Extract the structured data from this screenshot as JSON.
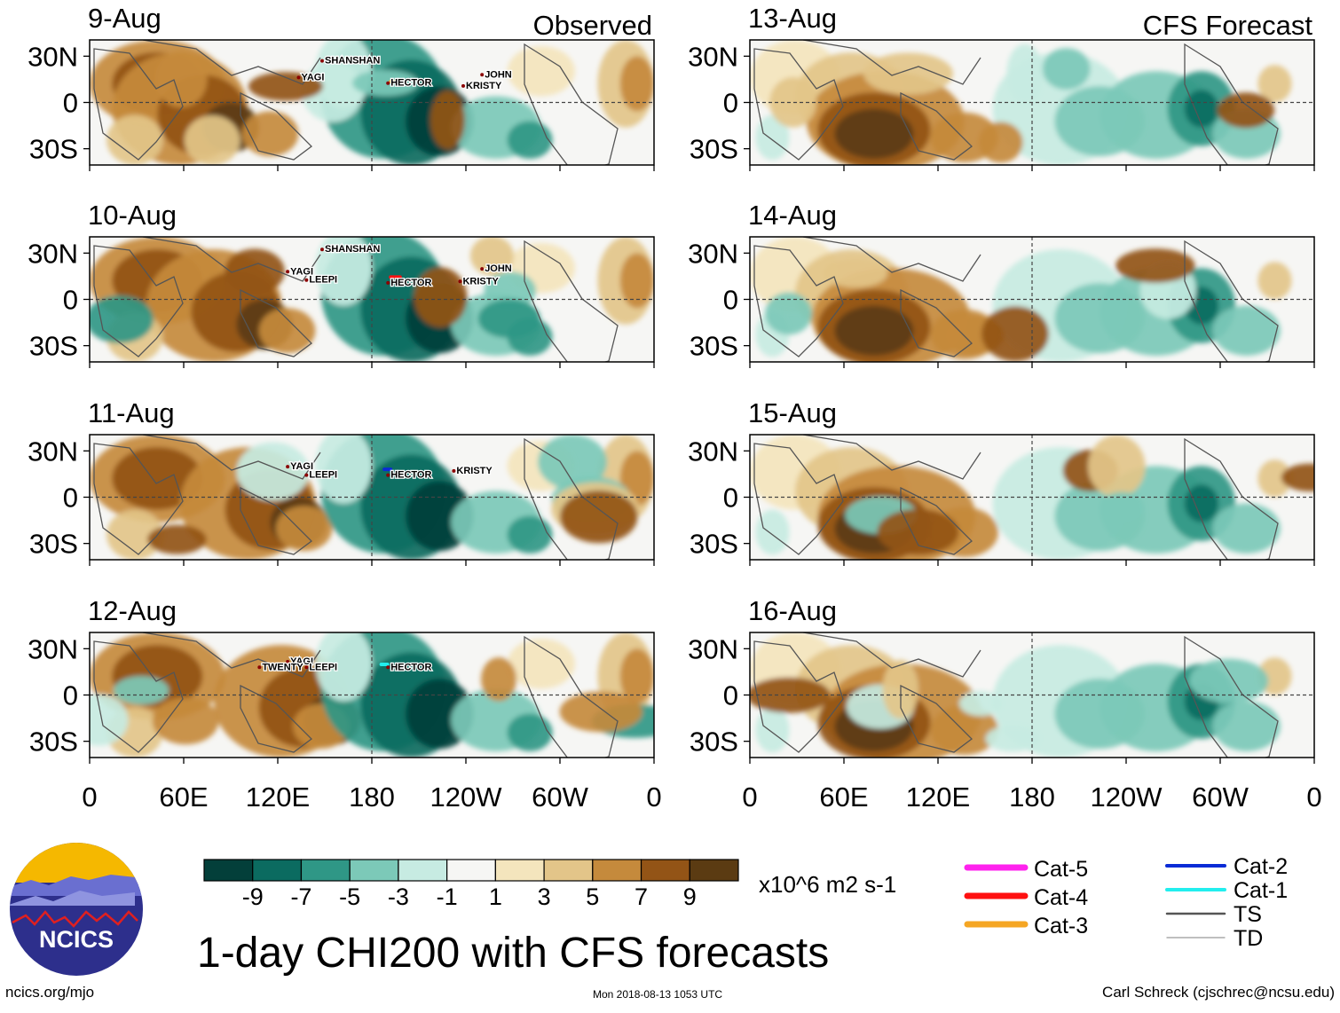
{
  "panel_labels": {
    "observed": "Observed",
    "forecast": "CFS Forecast"
  },
  "panels": [
    {
      "date": "9-Aug",
      "kind": "observed",
      "storms": [
        {
          "name": "SHANSHAN",
          "lon": 150,
          "lat": 28
        },
        {
          "name": "YAGI",
          "lon": 135,
          "lat": 16
        },
        {
          "name": "HECTOR",
          "lon": 192,
          "lat": 12
        },
        {
          "name": "JOHN",
          "lon": -108,
          "lat": 18
        },
        {
          "name": "KRISTY",
          "lon": -120,
          "lat": 10
        }
      ],
      "tracks": [
        {
          "cat": "Cat-3",
          "lon1": -168,
          "lon2": -161,
          "lat": 15
        }
      ]
    },
    {
      "date": "10-Aug",
      "kind": "observed",
      "storms": [
        {
          "name": "SHANSHAN",
          "lon": 150,
          "lat": 34
        },
        {
          "name": "YAGI",
          "lon": 128,
          "lat": 18
        },
        {
          "name": "LEEPI",
          "lon": 140,
          "lat": 12
        },
        {
          "name": "HECTOR",
          "lon": 192,
          "lat": 10
        },
        {
          "name": "JOHN",
          "lon": -108,
          "lat": 20
        },
        {
          "name": "KRISTY",
          "lon": -122,
          "lat": 11
        }
      ],
      "tracks": [
        {
          "cat": "Cat-4",
          "lon1": -168,
          "lon2": -162,
          "lat": 16
        }
      ]
    },
    {
      "date": "11-Aug",
      "kind": "observed",
      "storms": [
        {
          "name": "YAGI",
          "lon": 128,
          "lat": 20
        },
        {
          "name": "LEEPI",
          "lon": 140,
          "lat": 14
        },
        {
          "name": "HECTOR",
          "lon": 192,
          "lat": 14
        },
        {
          "name": "KRISTY",
          "lon": -126,
          "lat": 17
        }
      ],
      "tracks": [
        {
          "cat": "Cat-2",
          "lon1": -172,
          "lon2": -168,
          "lat": 20
        }
      ]
    },
    {
      "date": "12-Aug",
      "kind": "observed",
      "storms": [
        {
          "name": "YAGI",
          "lon": 128,
          "lat": 22
        },
        {
          "name": "TWENTY",
          "lon": 110,
          "lat": 18
        },
        {
          "name": "LEEPI",
          "lon": 140,
          "lat": 18
        },
        {
          "name": "HECTOR",
          "lon": 192,
          "lat": 18
        }
      ],
      "tracks": [
        {
          "cat": "Cat-1",
          "lon1": -174,
          "lon2": -170,
          "lat": 22
        }
      ]
    },
    {
      "date": "13-Aug",
      "kind": "forecast",
      "storms": [],
      "tracks": []
    },
    {
      "date": "14-Aug",
      "kind": "forecast",
      "storms": [],
      "tracks": []
    },
    {
      "date": "15-Aug",
      "kind": "forecast",
      "storms": [],
      "tracks": []
    },
    {
      "date": "16-Aug",
      "kind": "forecast",
      "storms": [],
      "tracks": []
    }
  ],
  "lat_labels": [
    "30N",
    "0",
    "30S"
  ],
  "lon_labels": [
    "0",
    "60E",
    "120E",
    "180",
    "120W",
    "60W",
    "0"
  ],
  "colorbar": {
    "colors": [
      "#033f3a",
      "#0b6b60",
      "#2f9786",
      "#7cc9b8",
      "#c7ebe2",
      "#f6f6f4",
      "#f4e5bd",
      "#e3c589",
      "#c58a3c",
      "#935416",
      "#5b3b12"
    ],
    "tick_labels": [
      "-9",
      "-7",
      "-5",
      "-3",
      "-1",
      "1",
      "3",
      "5",
      "7",
      "9"
    ],
    "units": "x10^6 m2 s-1"
  },
  "legend": {
    "left": [
      {
        "label": "Cat-5",
        "color": "#ff22ee"
      },
      {
        "label": "Cat-4",
        "color": "#ff1010"
      },
      {
        "label": "Cat-3",
        "color": "#f5a623"
      }
    ],
    "right": [
      {
        "label": "Cat-2",
        "color": "#0a2bd6"
      },
      {
        "label": "Cat-1",
        "color": "#22eeee"
      },
      {
        "label": "TS",
        "color": "#555555"
      },
      {
        "label": "TD",
        "color": "#999999"
      }
    ]
  },
  "logo": {
    "text": "NCICS"
  },
  "title": "1-day CHI200 with CFS forecasts",
  "footer": {
    "url": "ncics.org/mjo",
    "timestamp": "Mon 2018-08-13 1053 UTC",
    "author": "Carl Schreck (cjschrec@ncsu.edu)"
  }
}
